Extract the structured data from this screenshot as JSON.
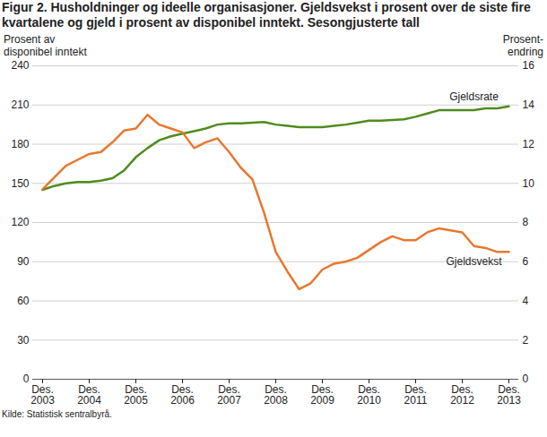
{
  "chart_data": {
    "type": "line",
    "title": "Figur 2. Husholdninger og ideelle organisasjoner. Gjeldsvekst i prosent over de siste fire kvartalene og gjeld i prosent av disponibel inntekt. Sesongjusterte tall",
    "y_label": "Prosent av\ndisponibel inntekt",
    "y2_label": "Prosent-\nendring",
    "source": "Kilde: Statistisk sentralbyrå.",
    "categories": [
      "Des.\n2003",
      null,
      null,
      null,
      "Des.\n2004",
      null,
      null,
      null,
      "Des.\n2005",
      null,
      null,
      null,
      "Des.\n2006",
      null,
      null,
      null,
      "Des.\n2007",
      null,
      null,
      null,
      "Des.\n2008",
      null,
      null,
      null,
      "Des.\n2009",
      null,
      null,
      null,
      "Des.\n2010",
      null,
      null,
      null,
      "Des.\n2011",
      null,
      null,
      null,
      "Des.\n2012",
      null,
      null,
      null,
      "Des.\n2013"
    ],
    "series": [
      {
        "name": "Gjeldsrate",
        "color": "#4e8c1e",
        "axis": "y",
        "values": [
          145,
          148,
          150,
          151,
          151,
          152,
          154,
          160,
          170,
          177,
          183,
          186,
          188,
          190,
          192,
          195,
          196,
          196,
          196.5,
          197,
          195,
          194,
          193,
          193,
          193,
          194,
          195,
          196.5,
          198,
          198,
          198.5,
          199,
          201,
          203.5,
          206,
          206,
          206,
          206,
          207.5,
          207.5,
          209
        ]
      },
      {
        "name": "Gjeldsvekst",
        "color": "#e8772e",
        "axis": "y2",
        "values": [
          9.7,
          10.3,
          10.9,
          11.2,
          11.5,
          11.6,
          12.1,
          12.7,
          12.8,
          13.5,
          13.0,
          12.8,
          12.6,
          11.8,
          12.1,
          12.3,
          11.6,
          10.8,
          10.2,
          8.5,
          6.5,
          5.5,
          4.6,
          4.9,
          5.6,
          5.9,
          6.0,
          6.2,
          6.6,
          7.0,
          7.3,
          7.1,
          7.1,
          7.5,
          7.7,
          7.6,
          7.5,
          6.8,
          6.7,
          6.5,
          6.5
        ]
      }
    ],
    "ylim": [
      0,
      240
    ],
    "yticks": [
      0,
      30,
      60,
      90,
      120,
      150,
      180,
      210,
      240
    ],
    "y2lim": [
      0,
      16
    ],
    "y2ticks": [
      0,
      2,
      4,
      6,
      8,
      10,
      12,
      14,
      16
    ],
    "grid": true
  }
}
